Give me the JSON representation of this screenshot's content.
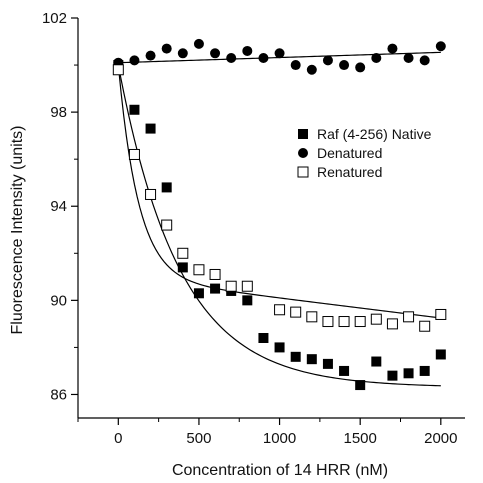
{
  "chart_data": {
    "type": "scatter",
    "title": "",
    "xlabel": "Concentration of 14 HRR (nM)",
    "ylabel": "Fluorescence Intensity (units)",
    "xlim": [
      -250,
      2150
    ],
    "ylim": [
      85,
      102
    ],
    "xticks": [
      0,
      500,
      1000,
      1500,
      2000
    ],
    "yticks": [
      86,
      90,
      94,
      98,
      102
    ],
    "grid": false,
    "legend_position": "right-middle",
    "series": [
      {
        "name": "Raf (4-256) Native",
        "marker": "filled-square",
        "color": "#000000",
        "x": [
          0,
          100,
          200,
          300,
          400,
          500,
          600,
          700,
          800,
          900,
          1000,
          1100,
          1200,
          1300,
          1400,
          1500,
          1600,
          1700,
          1800,
          1900,
          2000
        ],
        "y": [
          100.0,
          98.1,
          97.3,
          94.8,
          91.4,
          90.3,
          90.5,
          90.4,
          90.0,
          88.4,
          88.0,
          87.6,
          87.5,
          87.3,
          87.0,
          86.4,
          87.4,
          86.8,
          86.9,
          87.0,
          87.7
        ],
        "fit_curve": true
      },
      {
        "name": "Denatured",
        "marker": "filled-circle",
        "color": "#000000",
        "x": [
          0,
          100,
          200,
          300,
          400,
          500,
          600,
          700,
          800,
          900,
          1000,
          1100,
          1200,
          1300,
          1400,
          1500,
          1600,
          1700,
          1800,
          1900,
          2000
        ],
        "y": [
          100.1,
          100.2,
          100.4,
          100.7,
          100.5,
          100.9,
          100.5,
          100.3,
          100.6,
          100.3,
          100.5,
          100.0,
          99.8,
          100.2,
          100.0,
          99.9,
          100.3,
          100.7,
          100.3,
          100.2,
          100.8
        ],
        "fit_curve": true
      },
      {
        "name": "Renatured",
        "marker": "open-square",
        "color": "#000000",
        "x": [
          0,
          100,
          200,
          300,
          400,
          500,
          600,
          700,
          800,
          1000,
          1100,
          1200,
          1300,
          1400,
          1500,
          1600,
          1700,
          1800,
          1900,
          2000
        ],
        "y": [
          99.8,
          96.2,
          94.5,
          93.2,
          92.0,
          91.3,
          91.1,
          90.6,
          90.6,
          89.6,
          89.5,
          89.3,
          89.1,
          89.1,
          89.1,
          89.2,
          89.0,
          89.3,
          88.9,
          89.4
        ],
        "fit_curve": true
      }
    ]
  }
}
